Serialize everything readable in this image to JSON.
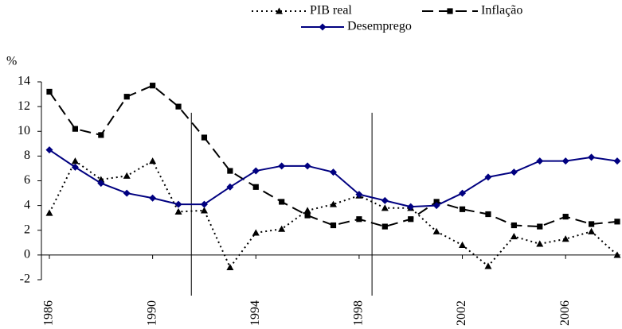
{
  "chart_data": {
    "type": "line",
    "y_label": "%",
    "x": [
      1986,
      1987,
      1988,
      1989,
      1990,
      1991,
      1992,
      1993,
      1994,
      1995,
      1996,
      1997,
      1998,
      1999,
      2000,
      2001,
      2002,
      2003,
      2004,
      2005,
      2006,
      2007,
      2008
    ],
    "series": [
      {
        "name": "PIB real",
        "color": "#000000",
        "dash": "dotted",
        "marker": "triangle",
        "values": [
          3.4,
          7.6,
          6.1,
          6.4,
          7.6,
          3.5,
          3.6,
          -1.0,
          1.8,
          2.1,
          3.6,
          4.1,
          4.8,
          3.8,
          3.8,
          1.9,
          0.8,
          -0.9,
          1.5,
          0.9,
          1.3,
          1.9,
          0.0
        ]
      },
      {
        "name": "Inflação",
        "color": "#000000",
        "dash": "dashed",
        "marker": "square",
        "values": [
          13.2,
          10.2,
          9.7,
          12.8,
          13.7,
          12.0,
          9.5,
          6.8,
          5.5,
          4.3,
          3.2,
          2.4,
          2.9,
          2.3,
          2.9,
          4.3,
          3.7,
          3.3,
          2.4,
          2.3,
          3.1,
          2.5,
          2.7
        ]
      },
      {
        "name": "Desemprego",
        "color": "#000080",
        "dash": "solid",
        "marker": "diamond",
        "values": [
          8.5,
          7.1,
          5.8,
          5.0,
          4.6,
          4.1,
          4.1,
          5.5,
          6.8,
          7.2,
          7.2,
          6.7,
          4.9,
          4.4,
          3.9,
          4.0,
          5.0,
          6.3,
          6.7,
          7.6,
          7.6,
          7.9,
          7.6
        ]
      }
    ],
    "reference_lines": [
      1991.5,
      1998.5
    ],
    "xlim": [
      1986,
      2008
    ],
    "xticks": [
      1986,
      1990,
      1994,
      1998,
      2002,
      2006
    ],
    "ylim": [
      -2,
      14
    ],
    "yticks": [
      -2,
      0,
      2,
      4,
      6,
      8,
      10,
      12,
      14
    ],
    "grid": false,
    "legend": "top"
  }
}
